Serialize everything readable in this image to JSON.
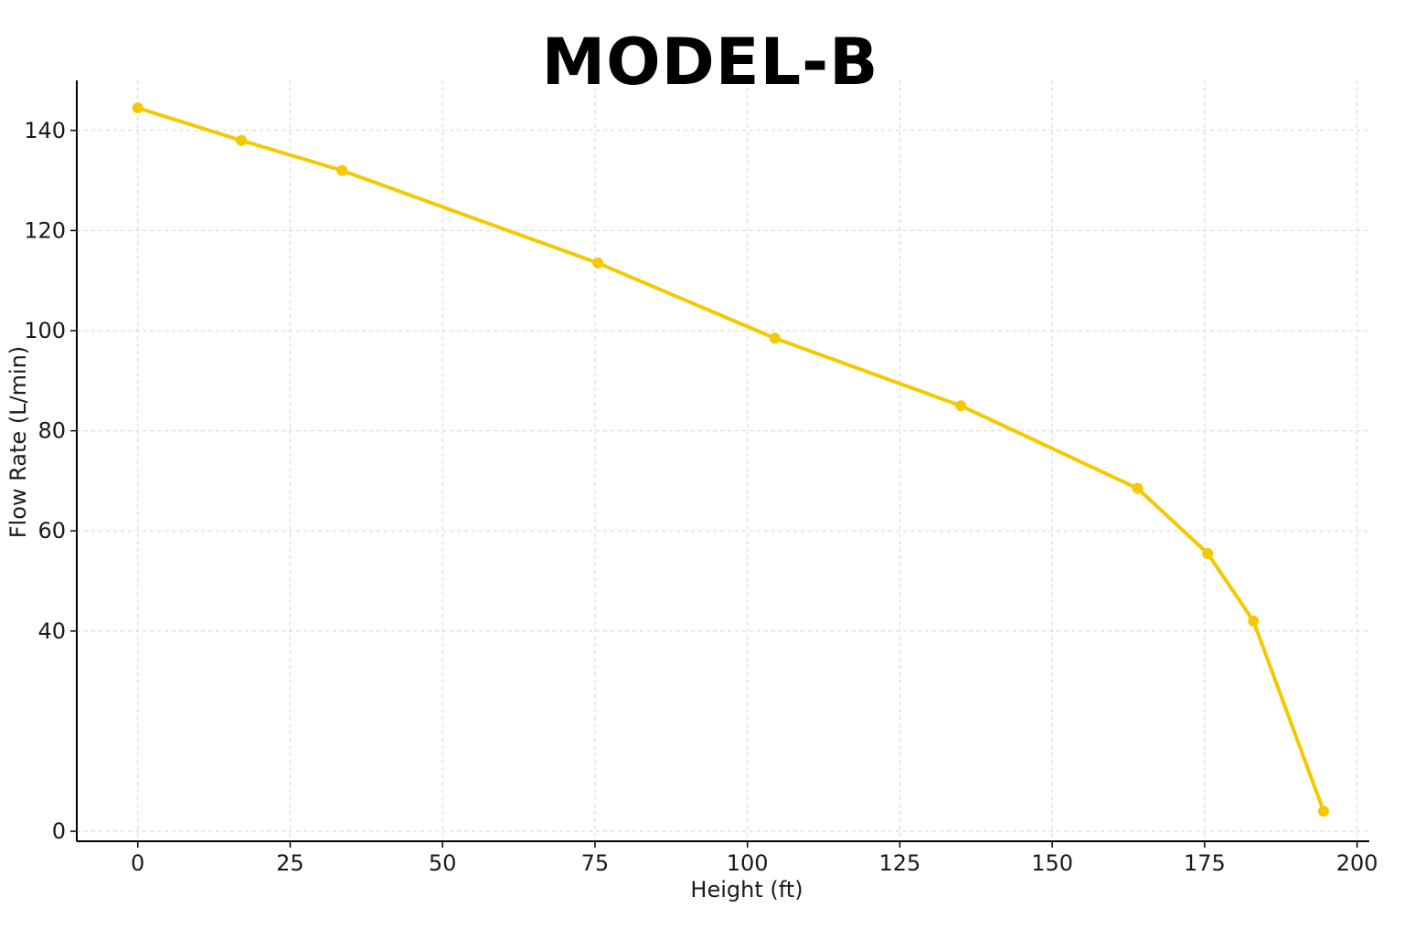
{
  "chart_data": {
    "type": "line",
    "title": "MODEL-B",
    "xlabel": "Height (ft)",
    "ylabel": "Flow Rate (L/min)",
    "xlim": [
      -10,
      202
    ],
    "ylim": [
      -2,
      150
    ],
    "x_ticks": [
      0,
      25,
      50,
      75,
      100,
      125,
      150,
      175,
      200
    ],
    "y_ticks": [
      0,
      40,
      60,
      80,
      100,
      120,
      140
    ],
    "grid": true,
    "color": "#F5C800",
    "series": [
      {
        "x": [
          0,
          17,
          33.5,
          75.5,
          104.5,
          135,
          164,
          175.5,
          183,
          194.5
        ],
        "y": [
          144.5,
          138,
          132,
          113.5,
          98.5,
          85,
          68.5,
          55.5,
          42,
          4
        ]
      }
    ]
  }
}
